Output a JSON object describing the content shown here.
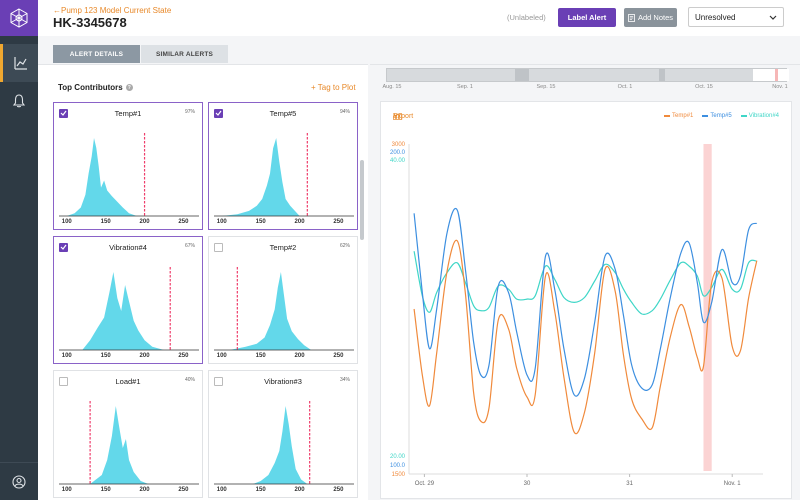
{
  "header": {
    "back_link": "←Pump 123 Model Current State",
    "alert_id": "HK-3345678",
    "label_state": "(Unlabeled)",
    "label_button": "Label Alert",
    "notes_button": "Add Notes",
    "status_value": "Unresolved"
  },
  "tabs": [
    {
      "label": "ALERT DETAILS",
      "active": true
    },
    {
      "label": "SIMILAR ALERTS",
      "active": false
    }
  ],
  "contributors": {
    "title": "Top Contributors",
    "tag_link": "+ Tag to Plot",
    "cards": [
      {
        "name": "Temp#1",
        "pct": "97%",
        "checked": true,
        "threshold": 200,
        "ticks": [
          "100",
          "150",
          "200",
          "250"
        ],
        "tick_values": [
          100,
          150,
          200,
          250
        ],
        "hist": [
          [
            100,
            0
          ],
          [
            110,
            2
          ],
          [
            118,
            6
          ],
          [
            124,
            15
          ],
          [
            128,
            30
          ],
          [
            132,
            42
          ],
          [
            135,
            55
          ],
          [
            138,
            48
          ],
          [
            141,
            35
          ],
          [
            144,
            20
          ],
          [
            148,
            25
          ],
          [
            152,
            18
          ],
          [
            158,
            14
          ],
          [
            165,
            10
          ],
          [
            172,
            6
          ],
          [
            180,
            2
          ],
          [
            190,
            0
          ]
        ]
      },
      {
        "name": "Temp#5",
        "pct": "94%",
        "checked": true,
        "threshold": 210,
        "ticks": [
          "100",
          "150",
          "200",
          "250"
        ],
        "tick_values": [
          100,
          150,
          200,
          250
        ],
        "hist": [
          [
            100,
            0
          ],
          [
            120,
            1
          ],
          [
            135,
            3
          ],
          [
            145,
            6
          ],
          [
            152,
            10
          ],
          [
            158,
            18
          ],
          [
            162,
            25
          ],
          [
            166,
            40
          ],
          [
            170,
            46
          ],
          [
            174,
            32
          ],
          [
            178,
            20
          ],
          [
            182,
            10
          ],
          [
            188,
            6
          ],
          [
            194,
            3
          ],
          [
            200,
            0
          ]
        ]
      },
      {
        "name": "Vibration#4",
        "pct": "67%",
        "checked": true,
        "threshold": 233,
        "ticks": [
          "100",
          "150",
          "200",
          "250"
        ],
        "tick_values": [
          100,
          150,
          200,
          250
        ],
        "hist": [
          [
            120,
            0
          ],
          [
            130,
            3
          ],
          [
            140,
            7
          ],
          [
            148,
            10
          ],
          [
            155,
            18
          ],
          [
            160,
            24
          ],
          [
            165,
            16
          ],
          [
            170,
            12
          ],
          [
            175,
            20
          ],
          [
            180,
            15
          ],
          [
            186,
            9
          ],
          [
            192,
            6
          ],
          [
            200,
            3
          ],
          [
            210,
            1
          ],
          [
            225,
            0
          ]
        ]
      },
      {
        "name": "Temp#2",
        "pct": "62%",
        "checked": false,
        "threshold": 120,
        "ticks": [
          "100",
          "150",
          "200",
          "250"
        ],
        "tick_values": [
          100,
          150,
          200,
          250
        ],
        "hist": [
          [
            110,
            0
          ],
          [
            130,
            2
          ],
          [
            145,
            4
          ],
          [
            155,
            8
          ],
          [
            162,
            16
          ],
          [
            168,
            26
          ],
          [
            172,
            40
          ],
          [
            176,
            50
          ],
          [
            180,
            35
          ],
          [
            184,
            20
          ],
          [
            190,
            12
          ],
          [
            198,
            7
          ],
          [
            206,
            3
          ],
          [
            215,
            0
          ]
        ]
      },
      {
        "name": "Load#1",
        "pct": "40%",
        "checked": false,
        "threshold": 130,
        "ticks": [
          "100",
          "150",
          "200",
          "250"
        ],
        "tick_values": [
          100,
          150,
          200,
          250
        ],
        "hist": [
          [
            130,
            0
          ],
          [
            145,
            3
          ],
          [
            152,
            8
          ],
          [
            158,
            16
          ],
          [
            163,
            26
          ],
          [
            168,
            18
          ],
          [
            172,
            12
          ],
          [
            176,
            15
          ],
          [
            180,
            8
          ],
          [
            186,
            4
          ],
          [
            195,
            1
          ],
          [
            205,
            0
          ]
        ]
      },
      {
        "name": "Vibration#3",
        "pct": "34%",
        "checked": false,
        "threshold": 213,
        "ticks": [
          "100",
          "150",
          "200",
          "250"
        ],
        "tick_values": [
          100,
          150,
          200,
          250
        ],
        "hist": [
          [
            140,
            0
          ],
          [
            150,
            2
          ],
          [
            160,
            6
          ],
          [
            168,
            14
          ],
          [
            174,
            22
          ],
          [
            178,
            35
          ],
          [
            182,
            52
          ],
          [
            186,
            40
          ],
          [
            190,
            25
          ],
          [
            195,
            10
          ],
          [
            202,
            3
          ],
          [
            210,
            0
          ]
        ]
      }
    ]
  },
  "timeline": {
    "labels": [
      "Aug. 15",
      "Sep. 1",
      "Sep. 15",
      "Oct. 1",
      "Oct. 15",
      "Nov. 1"
    ]
  },
  "chart": {
    "export_label": "Export",
    "legend": [
      {
        "name": "Temp#1",
        "color": "#f08a3c"
      },
      {
        "name": "Temp#5",
        "color": "#3d8fe0"
      },
      {
        "name": "Vibration#4",
        "color": "#3fd6c7"
      }
    ],
    "y_top": [
      "3000",
      "200.0",
      "40.00"
    ],
    "y_bottom": [
      "20.00",
      "100.0",
      "1500"
    ],
    "x_labels": [
      "Oct. 29",
      "30",
      "31",
      "Nov. 1"
    ]
  },
  "chart_data": {
    "type": "line",
    "x_labels": [
      "Oct. 29",
      "30",
      "31",
      "Nov. 1"
    ],
    "highlight_range": [
      31.72,
      31.8
    ],
    "series": [
      {
        "name": "Temp#1",
        "axis_range": [
          1500,
          3000
        ],
        "points": [
          [
            28.9,
            2250
          ],
          [
            28.98,
            1950
          ],
          [
            29.05,
            1810
          ],
          [
            29.12,
            2050
          ],
          [
            29.22,
            2420
          ],
          [
            29.32,
            2560
          ],
          [
            29.4,
            2320
          ],
          [
            29.48,
            1870
          ],
          [
            29.55,
            1740
          ],
          [
            29.63,
            1800
          ],
          [
            29.72,
            2200
          ],
          [
            29.82,
            2160
          ],
          [
            29.9,
            1980
          ],
          [
            30.0,
            1850
          ],
          [
            30.08,
            1860
          ],
          [
            30.18,
            2400
          ],
          [
            30.27,
            2240
          ],
          [
            30.36,
            1940
          ],
          [
            30.46,
            1690
          ],
          [
            30.56,
            1780
          ],
          [
            30.66,
            2050
          ],
          [
            30.76,
            2430
          ],
          [
            30.86,
            2330
          ],
          [
            30.94,
            2040
          ],
          [
            31.02,
            1840
          ],
          [
            31.12,
            1750
          ],
          [
            31.22,
            1710
          ],
          [
            31.3,
            1900
          ],
          [
            31.4,
            2130
          ],
          [
            31.5,
            2270
          ],
          [
            31.58,
            2170
          ],
          [
            31.66,
            2030
          ],
          [
            31.72,
            1990
          ],
          [
            31.8,
            2370
          ],
          [
            31.9,
            2390
          ],
          [
            32.0,
            2080
          ],
          [
            32.08,
            2060
          ],
          [
            32.16,
            2300
          ],
          [
            32.24,
            2470
          ]
        ]
      },
      {
        "name": "Temp#5",
        "axis_range": [
          100,
          200
        ],
        "points": [
          [
            28.9,
            179
          ],
          [
            28.98,
            155
          ],
          [
            29.05,
            138
          ],
          [
            29.12,
            150
          ],
          [
            29.22,
            173
          ],
          [
            29.32,
            180
          ],
          [
            29.4,
            162
          ],
          [
            29.48,
            140
          ],
          [
            29.55,
            130
          ],
          [
            29.63,
            133
          ],
          [
            29.72,
            157
          ],
          [
            29.82,
            155
          ],
          [
            29.9,
            143
          ],
          [
            30.0,
            130
          ],
          [
            30.08,
            132
          ],
          [
            30.18,
            166
          ],
          [
            30.27,
            156
          ],
          [
            30.36,
            138
          ],
          [
            30.46,
            124
          ],
          [
            30.56,
            129
          ],
          [
            30.66,
            146
          ],
          [
            30.76,
            166
          ],
          [
            30.86,
            162
          ],
          [
            30.94,
            148
          ],
          [
            31.02,
            133
          ],
          [
            31.12,
            126
          ],
          [
            31.22,
            127
          ],
          [
            31.3,
            138
          ],
          [
            31.4,
            154
          ],
          [
            31.5,
            167
          ],
          [
            31.58,
            170
          ],
          [
            31.66,
            158
          ],
          [
            31.72,
            146
          ],
          [
            31.8,
            152
          ],
          [
            31.9,
            168
          ],
          [
            32.0,
            158
          ],
          [
            32.08,
            160
          ],
          [
            32.16,
            174
          ],
          [
            32.24,
            176
          ]
        ]
      },
      {
        "name": "Vibration#4",
        "axis_range": [
          20,
          40
        ],
        "points": [
          [
            28.9,
            33.5
          ],
          [
            28.98,
            30.8
          ],
          [
            29.05,
            29.8
          ],
          [
            29.12,
            31.0
          ],
          [
            29.22,
            32.2
          ],
          [
            29.32,
            32.8
          ],
          [
            29.4,
            31.6
          ],
          [
            29.48,
            30.2
          ],
          [
            29.55,
            29.9
          ],
          [
            29.63,
            30.1
          ],
          [
            29.72,
            31.4
          ],
          [
            29.82,
            31.2
          ],
          [
            29.9,
            30.6
          ],
          [
            30.0,
            30.6
          ],
          [
            30.08,
            30.8
          ],
          [
            30.18,
            32.6
          ],
          [
            30.27,
            31.8
          ],
          [
            30.36,
            30.7
          ],
          [
            30.46,
            30.4
          ],
          [
            30.56,
            30.7
          ],
          [
            30.66,
            31.7
          ],
          [
            30.76,
            32.7
          ],
          [
            30.86,
            32.2
          ],
          [
            30.94,
            31.2
          ],
          [
            31.02,
            30.4
          ],
          [
            31.12,
            29.7
          ],
          [
            31.22,
            29.9
          ],
          [
            31.3,
            30.6
          ],
          [
            31.4,
            31.8
          ],
          [
            31.5,
            32.8
          ],
          [
            31.58,
            32.6
          ],
          [
            31.66,
            32.0
          ],
          [
            31.72,
            30.8
          ],
          [
            31.8,
            31.3
          ],
          [
            31.9,
            32.4
          ],
          [
            32.0,
            31.2
          ],
          [
            32.08,
            31.2
          ],
          [
            32.16,
            32.8
          ],
          [
            32.24,
            32.9
          ]
        ]
      }
    ]
  }
}
